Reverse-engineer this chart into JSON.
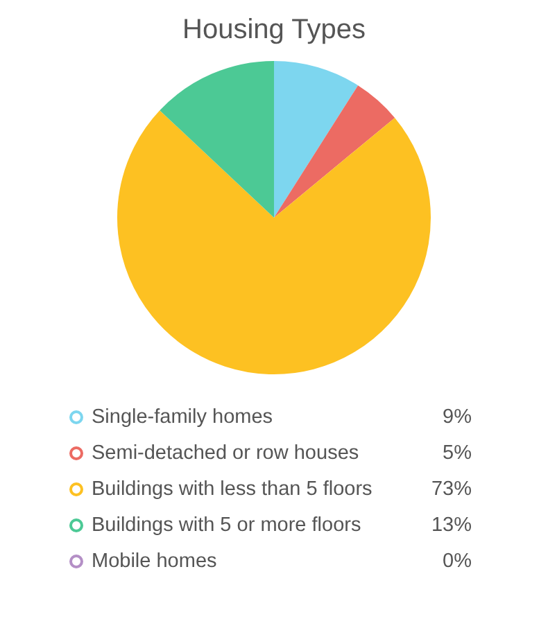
{
  "chart_data": {
    "type": "pie",
    "title": "Housing Types",
    "categories": [
      "Single-family homes",
      "Semi-detached or row houses",
      "Buildings with less than 5 floors",
      "Buildings with 5 or more floors",
      "Mobile homes"
    ],
    "values": [
      9,
      5,
      73,
      13,
      0
    ],
    "colors": [
      "#7dd6ef",
      "#ec6b63",
      "#fdc122",
      "#4cc995",
      "#b48fc6"
    ],
    "value_labels": [
      "9%",
      "5%",
      "73%",
      "13%",
      "0%"
    ],
    "legend": "bottom"
  }
}
